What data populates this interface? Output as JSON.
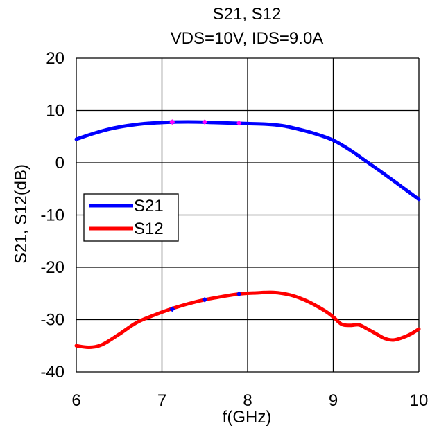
{
  "chart_data": {
    "type": "line",
    "title": "S21, S12",
    "subtitle": "VDS=10V, IDS=9.0A",
    "xlabel": "f(GHz)",
    "ylabel": "S21, S12(dB)",
    "xlim": [
      6,
      10
    ],
    "ylim": [
      -40,
      20
    ],
    "xticks": [
      6,
      7,
      8,
      9,
      10
    ],
    "yticks": [
      -40,
      -30,
      -20,
      -10,
      0,
      10,
      20
    ],
    "grid": true,
    "legend_position": "left",
    "series": [
      {
        "name": "S21",
        "color": "#0000ff",
        "x": [
          6.0,
          6.2,
          6.4,
          6.6,
          6.8,
          7.0,
          7.2,
          7.4,
          7.6,
          7.8,
          8.0,
          8.2,
          8.4,
          8.6,
          8.8,
          9.0,
          9.2,
          9.4,
          9.6,
          9.8,
          10.0
        ],
        "y": [
          4.5,
          5.6,
          6.5,
          7.1,
          7.5,
          7.7,
          7.8,
          7.8,
          7.7,
          7.6,
          7.5,
          7.4,
          7.1,
          6.4,
          5.5,
          4.3,
          2.4,
          0.1,
          -2.2,
          -4.6,
          -7.0
        ],
        "markers": {
          "color": "#ff00ff",
          "x": [
            7.12,
            7.5,
            7.9
          ],
          "y": [
            7.8,
            7.8,
            7.6
          ]
        }
      },
      {
        "name": "S12",
        "color": "#ff0000",
        "x": [
          6.0,
          6.15,
          6.3,
          6.5,
          6.7,
          6.9,
          7.1,
          7.3,
          7.5,
          7.7,
          7.9,
          8.1,
          8.3,
          8.5,
          8.7,
          8.9,
          9.0,
          9.1,
          9.2,
          9.3,
          9.4,
          9.5,
          9.6,
          9.7,
          9.8,
          9.9,
          10.0
        ],
        "y": [
          -35.0,
          -35.3,
          -34.8,
          -32.8,
          -30.6,
          -29.2,
          -28.0,
          -27.0,
          -26.2,
          -25.6,
          -25.1,
          -24.9,
          -24.8,
          -25.3,
          -26.5,
          -28.3,
          -29.5,
          -30.9,
          -31.1,
          -31.0,
          -31.8,
          -32.7,
          -33.6,
          -33.9,
          -33.5,
          -32.8,
          -31.8
        ],
        "markers": {
          "color": "#0000ff",
          "x": [
            7.12,
            7.5,
            7.9
          ],
          "y": [
            -28.0,
            -26.2,
            -25.1
          ]
        }
      }
    ]
  }
}
